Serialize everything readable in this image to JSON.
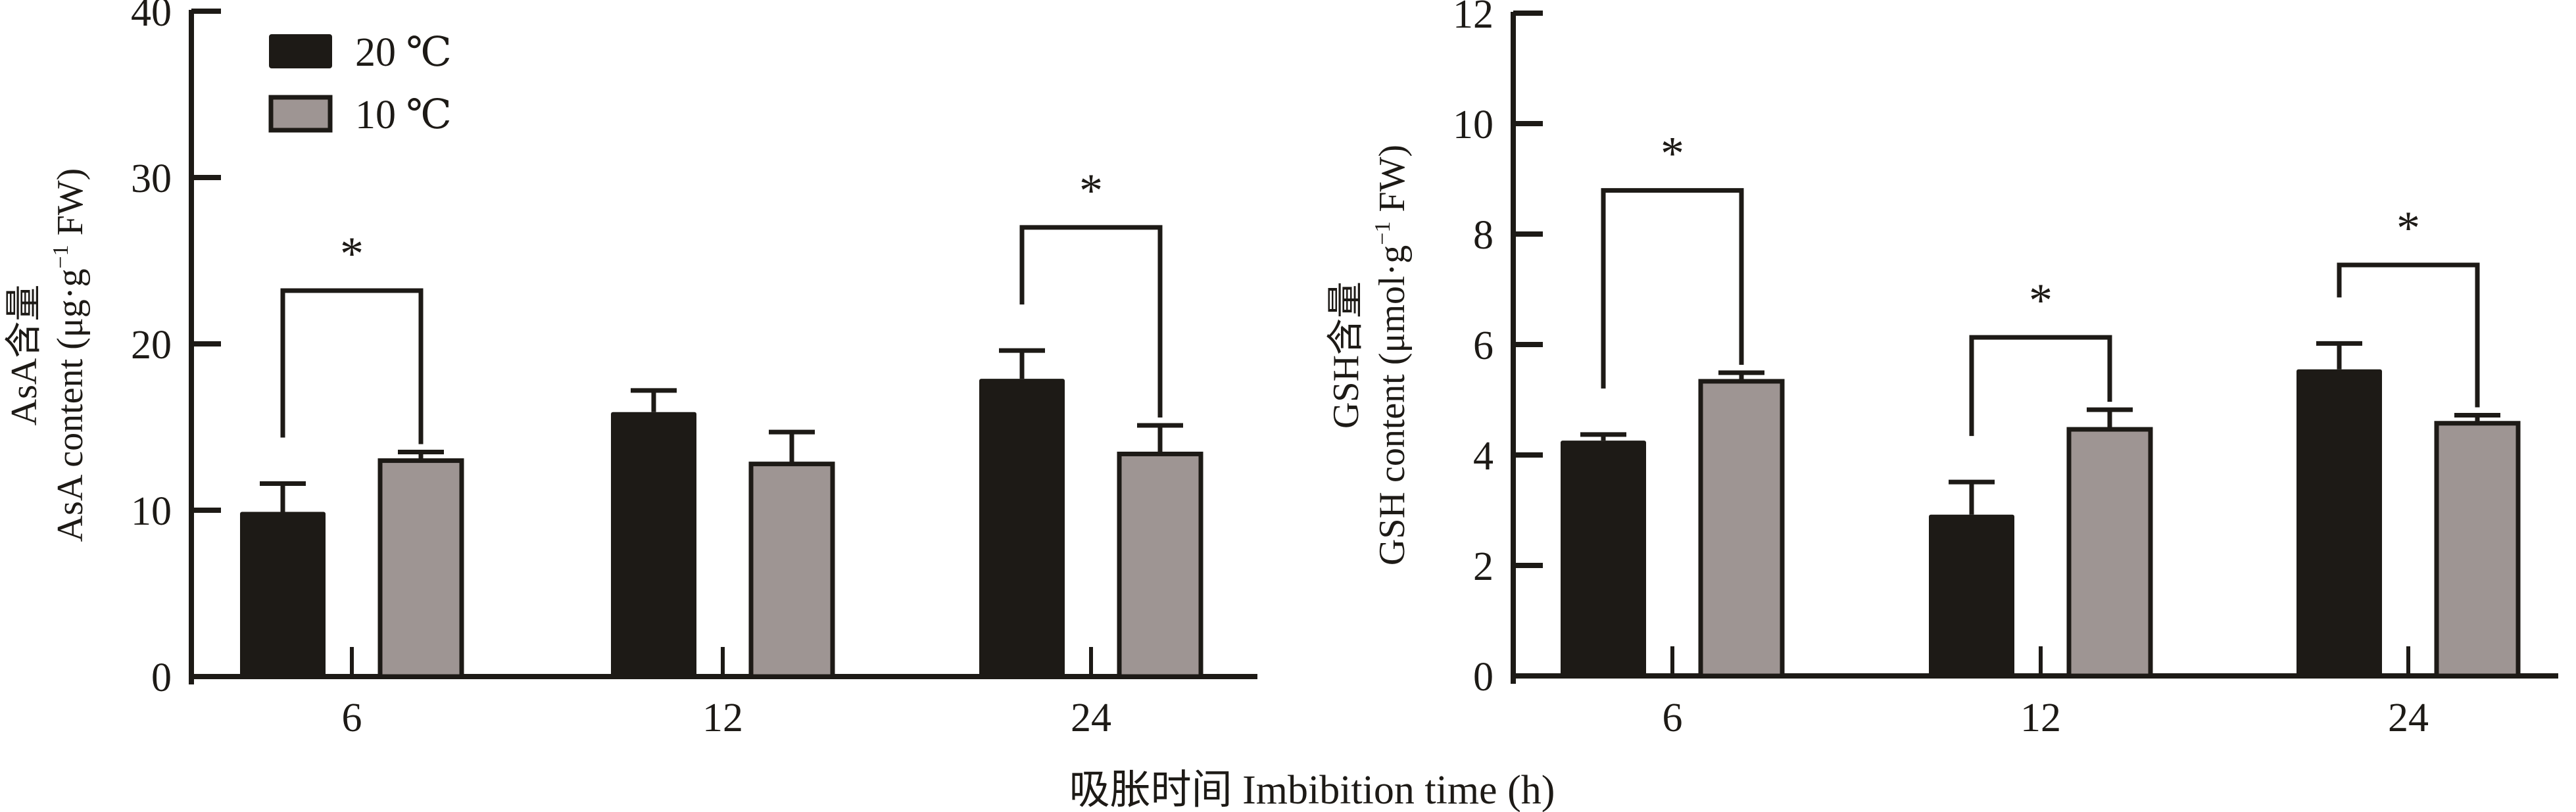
{
  "colors": {
    "ink": "#1d1a16",
    "c20": "#1d1a16",
    "c10": "#9e9593",
    "background": "#ffffff"
  },
  "legend": {
    "entries": [
      {
        "label": "20 ℃",
        "color": "#1d1a16"
      },
      {
        "label": "10 ℃",
        "color": "#9e9593"
      }
    ],
    "placement": "top-left of first panel"
  },
  "shared_xlabel": "吸胀时间 Imbibition time (h)",
  "chart_data": [
    {
      "type": "bar",
      "panel": "AsA",
      "title": "",
      "ylabel_cn": "AsA含量",
      "ylabel_en": "AsA content (μg·g⁻¹ FW)",
      "ylabel_en_parts": {
        "main": "AsA content (μg·g",
        "sup": "−1",
        "tail": " FW)"
      },
      "xlabel": "吸胀时间 Imbibition time (h)",
      "categories": [
        "6",
        "12",
        "24"
      ],
      "ylim": [
        0,
        40
      ],
      "yticks": [
        "0",
        "10",
        "20",
        "30",
        "40"
      ],
      "grid": false,
      "series": [
        {
          "name": "20 ℃",
          "values": [
            9.9,
            15.9,
            17.9
          ],
          "errors": [
            1.7,
            1.3,
            1.7
          ]
        },
        {
          "name": "10 ℃",
          "values": [
            13.1,
            12.9,
            13.5
          ],
          "errors": [
            0.4,
            1.8,
            1.6
          ]
        }
      ],
      "significance": [
        {
          "category": "6",
          "label": "*",
          "level": 23.2
        },
        {
          "category": "24",
          "label": "*",
          "level": 27.0
        }
      ]
    },
    {
      "type": "bar",
      "panel": "GSH",
      "title": "",
      "ylabel_cn": "GSH含量",
      "ylabel_en": "GSH content (μmol·g⁻¹ FW)",
      "ylabel_en_parts": {
        "main": "GSH content (μmol·g",
        "sup": "−1",
        "tail": " FW)"
      },
      "xlabel": "吸胀时间 Imbibition time (h)",
      "categories": [
        "6",
        "12",
        "24"
      ],
      "ylim": [
        0,
        12
      ],
      "yticks": [
        "0",
        "2",
        "4",
        "6",
        "8",
        "10",
        "12"
      ],
      "grid": false,
      "series": [
        {
          "name": "20 ℃",
          "values": [
            4.26,
            2.92,
            5.55
          ],
          "errors": [
            0.11,
            0.59,
            0.47
          ]
        },
        {
          "name": "10 ℃",
          "values": [
            5.37,
            4.5,
            4.61
          ],
          "errors": [
            0.12,
            0.32,
            0.11
          ]
        }
      ],
      "significance": [
        {
          "category": "6",
          "label": "*",
          "level": 8.79
        },
        {
          "category": "12",
          "label": "*",
          "level": 6.13
        },
        {
          "category": "24",
          "label": "*",
          "level": 7.44
        }
      ]
    }
  ]
}
